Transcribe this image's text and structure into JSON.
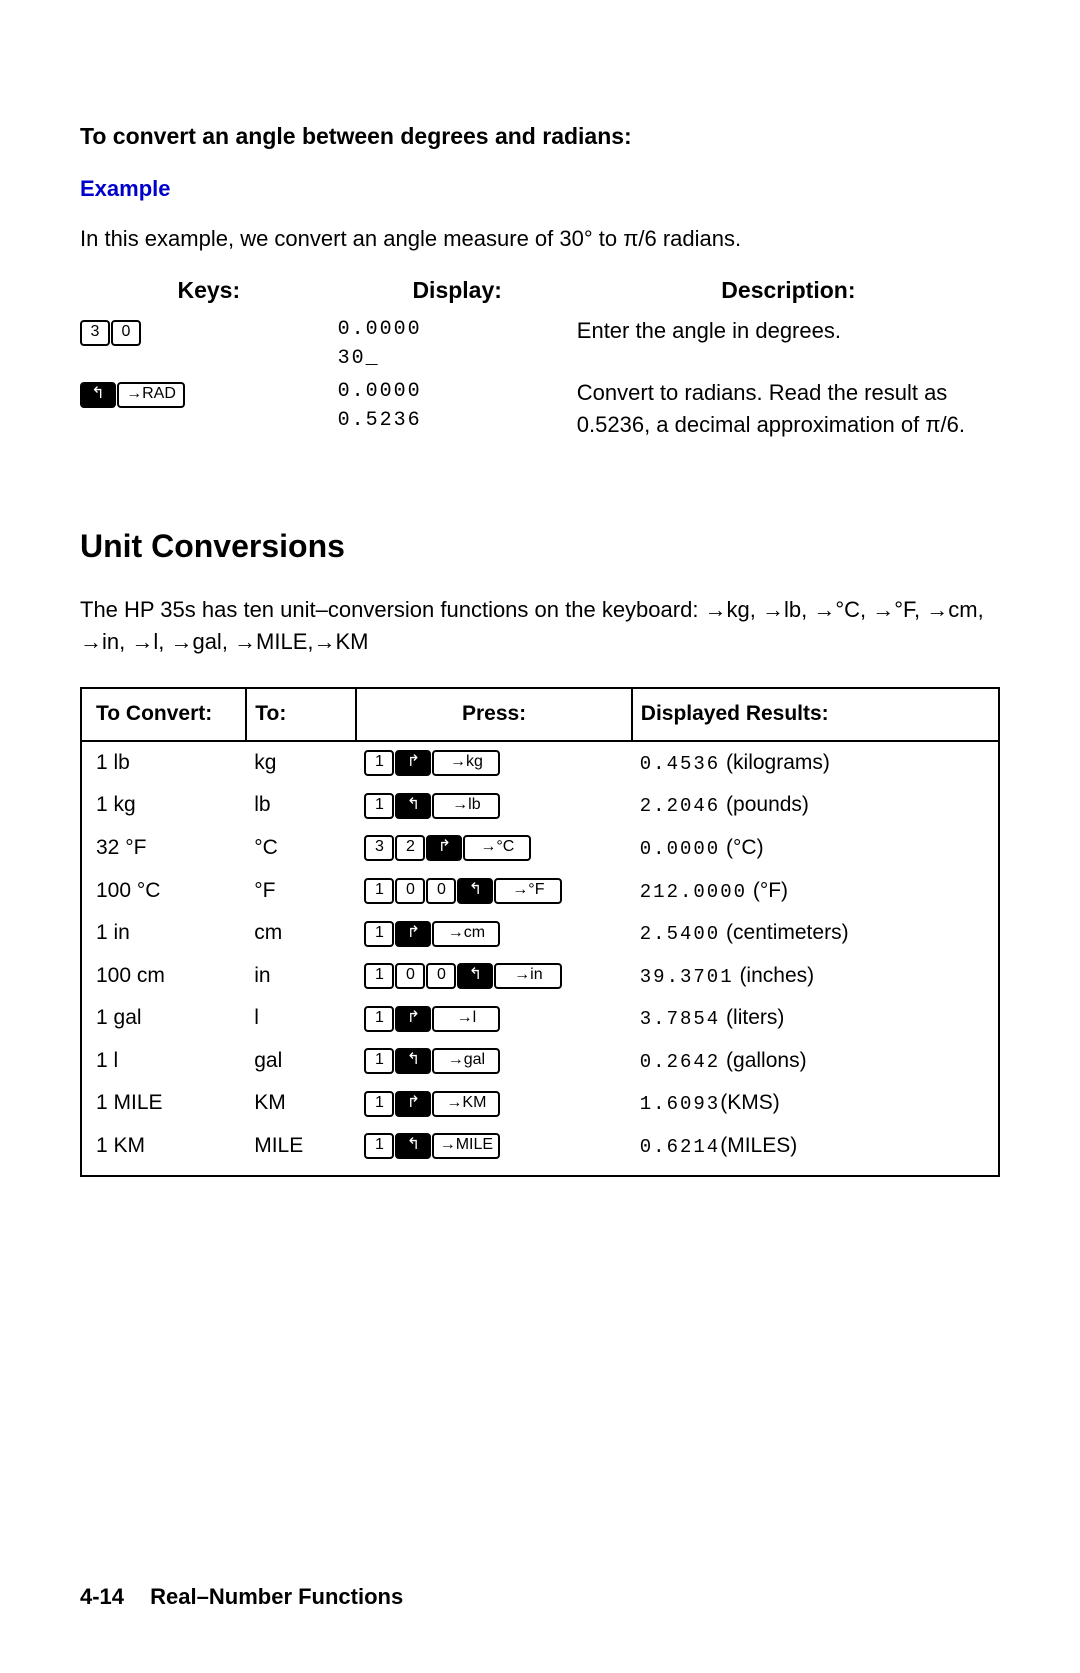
{
  "angle": {
    "subheading": "To convert an angle between degrees and radians:",
    "example_label": "Example",
    "intro": "In this example, we convert an angle measure of 30° to π/6 radians.",
    "headers": {
      "keys": "Keys:",
      "display": "Display:",
      "description": "Description:"
    },
    "rows": [
      {
        "keys": [
          {
            "type": "num",
            "label": "3"
          },
          {
            "type": "num",
            "label": "0"
          }
        ],
        "display": [
          "0.0000",
          "30_"
        ],
        "description": "Enter the angle in degrees."
      },
      {
        "keys": [
          {
            "type": "shift-left",
            "label": "↰"
          },
          {
            "type": "fn",
            "label": "→RAD"
          }
        ],
        "display": [
          "0.0000",
          "0.5236"
        ],
        "description": "Convert to radians. Read the result as 0.5236, a decimal approximation of π/6."
      }
    ]
  },
  "unit": {
    "heading": "Unit Conversions",
    "body": "The HP 35s has ten unit–conversion functions on the keyboard: →kg, →lb, →°C, →°F, →cm, →in, →l, →gal, →MILE,→KM",
    "headers": {
      "convert": "To Convert:",
      "to": "To:",
      "press": "Press:",
      "result": "Displayed Results:"
    },
    "rows": [
      {
        "from": "1 lb",
        "to": "kg",
        "press": [
          {
            "t": "num",
            "l": "1"
          },
          {
            "t": "shift-right",
            "l": "↱"
          },
          {
            "t": "fn",
            "l": "→kg"
          }
        ],
        "num": "0.4536",
        "unit": " (kilograms)"
      },
      {
        "from": "1 kg",
        "to": "lb",
        "press": [
          {
            "t": "num",
            "l": "1"
          },
          {
            "t": "shift-left",
            "l": "↰"
          },
          {
            "t": "fn",
            "l": "→lb"
          }
        ],
        "num": "2.2046",
        "unit": " (pounds)"
      },
      {
        "from": "32 °F",
        "to": "°C",
        "press": [
          {
            "t": "num",
            "l": "3"
          },
          {
            "t": "num",
            "l": "2"
          },
          {
            "t": "shift-right",
            "l": "↱"
          },
          {
            "t": "fn",
            "l": "→°C"
          }
        ],
        "num": "0.0000",
        "unit": " (°C)"
      },
      {
        "from": "100 °C",
        "to": "°F",
        "press": [
          {
            "t": "num",
            "l": "1"
          },
          {
            "t": "num",
            "l": "0"
          },
          {
            "t": "num",
            "l": "0"
          },
          {
            "t": "shift-left",
            "l": "↰"
          },
          {
            "t": "fn",
            "l": "→°F"
          }
        ],
        "num": "212.0000",
        "unit": " (°F)"
      },
      {
        "from": "1 in",
        "to": "cm",
        "press": [
          {
            "t": "num",
            "l": "1"
          },
          {
            "t": "shift-right",
            "l": "↱"
          },
          {
            "t": "fn",
            "l": "→cm"
          }
        ],
        "num": "2.5400",
        "unit": " (centimeters)"
      },
      {
        "from": "100 cm",
        "to": "in",
        "press": [
          {
            "t": "num",
            "l": "1"
          },
          {
            "t": "num",
            "l": "0"
          },
          {
            "t": "num",
            "l": "0"
          },
          {
            "t": "shift-left",
            "l": "↰"
          },
          {
            "t": "fn",
            "l": "→in"
          }
        ],
        "num": "39.3701",
        "unit": " (inches)"
      },
      {
        "from": "1 gal",
        "to": "l",
        "press": [
          {
            "t": "num",
            "l": "1"
          },
          {
            "t": "shift-right",
            "l": "↱"
          },
          {
            "t": "fn",
            "l": "→l"
          }
        ],
        "num": "3.7854",
        "unit": " (liters)"
      },
      {
        "from": "1 l",
        "to": "gal",
        "press": [
          {
            "t": "num",
            "l": "1"
          },
          {
            "t": "shift-left",
            "l": "↰"
          },
          {
            "t": "fn",
            "l": "→gal"
          }
        ],
        "num": "0.2642",
        "unit": " (gallons)"
      },
      {
        "from": "1 MILE",
        "to": "KM",
        "press": [
          {
            "t": "num",
            "l": "1"
          },
          {
            "t": "shift-right",
            "l": "↱"
          },
          {
            "t": "fn",
            "l": "→KM"
          }
        ],
        "num": "1.6093",
        "unit": "(KMS)"
      },
      {
        "from": "1 KM",
        "to": "MILE",
        "press": [
          {
            "t": "num",
            "l": "1"
          },
          {
            "t": "shift-left",
            "l": "↰"
          },
          {
            "t": "fn",
            "l": "→MILE"
          }
        ],
        "num": "0.6214",
        "unit": "(MILES)"
      }
    ]
  },
  "footer": {
    "page": "4-14",
    "title": "Real–Number Functions"
  }
}
